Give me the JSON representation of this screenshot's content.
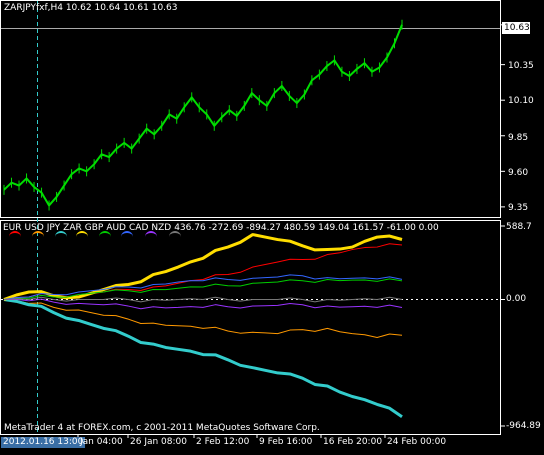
{
  "chart_info": {
    "symbol_line": "ZARJPYfxf,H4  10.62 10.64 10.61 10.63",
    "current_price_label": "10.63",
    "price_ticks": [
      "10.63",
      "10.35",
      "10.10",
      "9.85",
      "9.60",
      "9.35"
    ],
    "indicator_ticks": [
      "588.7",
      "0.00",
      "-964.89"
    ],
    "time_ticks": [
      "2012.01.16 13:00",
      "Jan 04:00",
      "26 Jan 08:00",
      "2 Feb 12:00",
      "9 Feb 16:00",
      "16 Feb 20:00",
      "24 Feb 00:00"
    ],
    "copyright": "MetaTrader 4 at FOREX.com, c 2001-2011 MetaQuotes Software Corp."
  },
  "indicator": {
    "currencies": [
      "EUR",
      "USD",
      "JPY",
      "ZAR",
      "GBP",
      "AUD",
      "CAD",
      "NZD"
    ],
    "values_text": "436.76 -272.69 -894.27 480.59 149.04 161.57 -61.00 0.00"
  },
  "colors": {
    "background": "#000000",
    "price": "#00dd00",
    "grid": "#ffffff",
    "EUR": "#ff0000",
    "USD": "#ff9900",
    "JPY": "#33cccc",
    "ZAR": "#ffdd00",
    "GBP": "#00cc00",
    "AUD": "#3366ff",
    "CAD": "#9933ff",
    "NZD": "#777777"
  },
  "chart_data": [
    {
      "type": "line",
      "title": "ZARJPYfxf,H4",
      "y_range": [
        9.3,
        10.72
      ],
      "series": [
        {
          "name": "ZARJPYfxf",
          "values": [
            9.47,
            9.52,
            9.5,
            9.55,
            9.49,
            9.45,
            9.36,
            9.42,
            9.5,
            9.58,
            9.62,
            9.6,
            9.65,
            9.72,
            9.7,
            9.76,
            9.8,
            9.76,
            9.83,
            9.9,
            9.86,
            9.92,
            10.0,
            9.97,
            10.05,
            10.12,
            10.05,
            10.0,
            9.92,
            9.98,
            10.03,
            9.99,
            10.06,
            10.15,
            10.1,
            10.06,
            10.15,
            10.2,
            10.13,
            10.08,
            10.14,
            10.24,
            10.28,
            10.34,
            10.38,
            10.3,
            10.27,
            10.32,
            10.36,
            10.3,
            10.33,
            10.4,
            10.5,
            10.63
          ]
        }
      ]
    },
    {
      "type": "line",
      "y_range": [
        -964.89,
        588.7
      ],
      "series": [
        {
          "name": "EUR",
          "values": [
            0,
            20,
            40,
            30,
            60,
            80,
            100,
            130,
            160,
            200,
            260,
            300,
            320,
            360,
            400,
            420,
            436.76
          ]
        },
        {
          "name": "USD",
          "values": [
            0,
            -30,
            -60,
            -80,
            -120,
            -150,
            -180,
            -200,
            -220,
            -240,
            -250,
            -260,
            -230,
            -220,
            -260,
            -290,
            -272.69
          ]
        },
        {
          "name": "JPY",
          "values": [
            0,
            -40,
            -100,
            -160,
            -220,
            -280,
            -340,
            -380,
            -420,
            -460,
            -520,
            -560,
            -600,
            -660,
            -740,
            -800,
            -894.27
          ]
        },
        {
          "name": "ZAR",
          "values": [
            0,
            60,
            30,
            20,
            80,
            120,
            200,
            260,
            330,
            420,
            520,
            480,
            430,
            400,
            420,
            500,
            480.59
          ]
        },
        {
          "name": "GBP",
          "values": [
            0,
            10,
            20,
            40,
            60,
            70,
            80,
            90,
            100,
            110,
            130,
            140,
            150,
            160,
            155,
            145,
            149.04
          ]
        },
        {
          "name": "AUD",
          "values": [
            0,
            20,
            40,
            60,
            80,
            100,
            120,
            140,
            150,
            160,
            170,
            180,
            190,
            175,
            170,
            165,
            161.57
          ]
        },
        {
          "name": "CAD",
          "values": [
            0,
            -10,
            -20,
            -30,
            -40,
            -50,
            -55,
            -60,
            -60,
            -55,
            -50,
            -45,
            -40,
            -50,
            -55,
            -60,
            -61.0
          ]
        },
        {
          "name": "NZD",
          "values": [
            0,
            0,
            0,
            0,
            0,
            0,
            0,
            0,
            0,
            0,
            0,
            0,
            0,
            0,
            0,
            0,
            0.0
          ]
        }
      ]
    }
  ]
}
